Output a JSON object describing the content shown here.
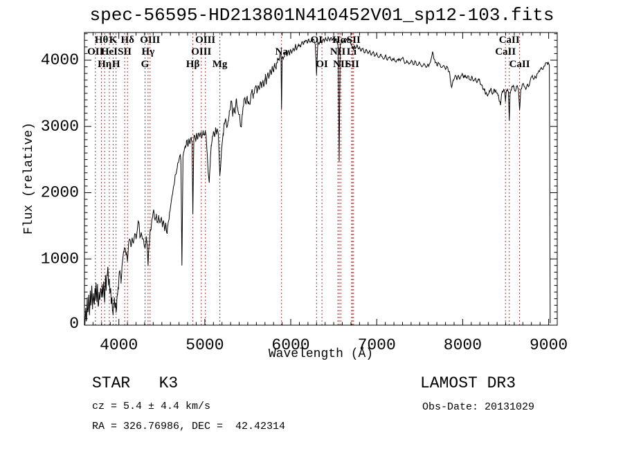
{
  "title": "spec-56595-HD213801N410452V01_sp12-103.fits",
  "annotations": {
    "class_line": "STAR   K3",
    "cz_line": "cz = 5.4 ± 4.4 km/s",
    "radec_line": "RA = 326.76986, DEC =  42.42314",
    "survey_line": "LAMOST DR3",
    "obsdate_line": "Obs-Date: 20131029"
  },
  "chart_data": {
    "type": "line",
    "title": "spec-56595-HD213801N410452V01_sp12-103.fits",
    "xlabel": "Wavelength (Å)",
    "ylabel": "Flux (relative)",
    "xlim": [
      3600,
      9100
    ],
    "ylim": [
      0,
      4420
    ],
    "x_ticks": [
      4000,
      5000,
      6000,
      7000,
      8000,
      9000
    ],
    "y_ticks": [
      0,
      1000,
      2000,
      3000,
      4000
    ],
    "grid": false,
    "legend": "none",
    "curve_color": "#000000",
    "line_marker_color": "#a83434",
    "spectral_lines": [
      {
        "label": "OII",
        "wavelength": 3727,
        "row": 2
      },
      {
        "label": "Hθ",
        "wavelength": 3798,
        "row": 1
      },
      {
        "label": "Hη",
        "wavelength": 3835,
        "row": 3
      },
      {
        "label": "HeI",
        "wavelength": 3889,
        "row": 2
      },
      {
        "label": "K",
        "wavelength": 3933,
        "row": 1
      },
      {
        "label": "H",
        "wavelength": 3968,
        "row": 3
      },
      {
        "label": "SII",
        "wavelength": 4068,
        "row": 2
      },
      {
        "label": "Hδ",
        "wavelength": 4101,
        "row": 1
      },
      {
        "label": "G",
        "wavelength": 4305,
        "row": 3
      },
      {
        "label": "Hγ",
        "wavelength": 4340,
        "row": 2
      },
      {
        "label": "OIII",
        "wavelength": 4363,
        "row": 1
      },
      {
        "label": "Hβ",
        "wavelength": 4861,
        "row": 3
      },
      {
        "label": "OIII",
        "wavelength": 4959,
        "row": 2
      },
      {
        "label": "OIII",
        "wavelength": 5007,
        "row": 1
      },
      {
        "label": "Mg",
        "wavelength": 5175,
        "row": 3
      },
      {
        "label": "Na",
        "wavelength": 5893,
        "row": 2
      },
      {
        "label": "OI",
        "wavelength": 6300,
        "row": 1
      },
      {
        "label": "OI",
        "wavelength": 6363,
        "row": 3
      },
      {
        "label": "NII",
        "wavelength": 6548,
        "row": 2
      },
      {
        "label": "Hα",
        "wavelength": 6563,
        "row": 1
      },
      {
        "label": "NII",
        "wavelength": 6583,
        "row": 3
      },
      {
        "label": "Li",
        "wavelength": 6708,
        "row": 2
      },
      {
        "label": "SII",
        "wavelength": 6716,
        "row": 3
      },
      {
        "label": "SII",
        "wavelength": 6731,
        "row": 1
      },
      {
        "label": "CaII",
        "wavelength": 8498,
        "row": 2
      },
      {
        "label": "CaII",
        "wavelength": 8542,
        "row": 1
      },
      {
        "label": "CaII",
        "wavelength": 8662,
        "row": 3
      }
    ],
    "noise_bands": [
      [
        3600,
        4050,
        90
      ],
      [
        4050,
        4560,
        60
      ],
      [
        4560,
        5300,
        55
      ],
      [
        5300,
        5900,
        65
      ],
      [
        5900,
        6800,
        30
      ],
      [
        6800,
        7600,
        25
      ],
      [
        7600,
        8420,
        35
      ],
      [
        8420,
        9008,
        25
      ]
    ],
    "points": [
      [
        3605,
        0
      ],
      [
        3615,
        260
      ],
      [
        3622,
        60
      ],
      [
        3632,
        420
      ],
      [
        3640,
        200
      ],
      [
        3650,
        460
      ],
      [
        3658,
        150
      ],
      [
        3668,
        520
      ],
      [
        3676,
        300
      ],
      [
        3686,
        560
      ],
      [
        3694,
        240
      ],
      [
        3704,
        480
      ],
      [
        3712,
        330
      ],
      [
        3722,
        560
      ],
      [
        3727,
        380
      ],
      [
        3736,
        600
      ],
      [
        3744,
        350
      ],
      [
        3752,
        620
      ],
      [
        3760,
        280
      ],
      [
        3770,
        500
      ],
      [
        3778,
        380
      ],
      [
        3788,
        560
      ],
      [
        3798,
        420
      ],
      [
        3806,
        620
      ],
      [
        3814,
        420
      ],
      [
        3824,
        660
      ],
      [
        3835,
        340
      ],
      [
        3844,
        700
      ],
      [
        3852,
        520
      ],
      [
        3862,
        760
      ],
      [
        3872,
        880
      ],
      [
        3880,
        600
      ],
      [
        3889,
        700
      ],
      [
        3896,
        480
      ],
      [
        3905,
        560
      ],
      [
        3912,
        320
      ],
      [
        3920,
        420
      ],
      [
        3928,
        220
      ],
      [
        3933,
        150
      ],
      [
        3940,
        320
      ],
      [
        3948,
        420
      ],
      [
        3955,
        260
      ],
      [
        3962,
        340
      ],
      [
        3968,
        190
      ],
      [
        3976,
        380
      ],
      [
        3984,
        480
      ],
      [
        3992,
        580
      ],
      [
        4000,
        700
      ],
      [
        4012,
        820
      ],
      [
        4024,
        700
      ],
      [
        4036,
        880
      ],
      [
        4048,
        1020
      ],
      [
        4060,
        1100
      ],
      [
        4075,
        1160
      ],
      [
        4088,
        1100
      ],
      [
        4101,
        960
      ],
      [
        4112,
        1200
      ],
      [
        4126,
        1300
      ],
      [
        4140,
        1180
      ],
      [
        4155,
        1320
      ],
      [
        4170,
        1240
      ],
      [
        4185,
        1380
      ],
      [
        4200,
        1300
      ],
      [
        4215,
        1440
      ],
      [
        4230,
        1560
      ],
      [
        4245,
        1320
      ],
      [
        4260,
        1400
      ],
      [
        4275,
        1300
      ],
      [
        4290,
        1260
      ],
      [
        4305,
        1160
      ],
      [
        4318,
        1340
      ],
      [
        4330,
        1200
      ],
      [
        4340,
        900
      ],
      [
        4352,
        1220
      ],
      [
        4366,
        1420
      ],
      [
        4380,
        1540
      ],
      [
        4394,
        1640
      ],
      [
        4408,
        1720
      ],
      [
        4422,
        1580
      ],
      [
        4436,
        1680
      ],
      [
        4450,
        1560
      ],
      [
        4464,
        1660
      ],
      [
        4478,
        1540
      ],
      [
        4492,
        1620
      ],
      [
        4506,
        1480
      ],
      [
        4520,
        1580
      ],
      [
        4534,
        1420
      ],
      [
        4548,
        1520
      ],
      [
        4562,
        1380
      ],
      [
        4576,
        1560
      ],
      [
        4590,
        1700
      ],
      [
        4605,
        1820
      ],
      [
        4620,
        1960
      ],
      [
        4635,
        2080
      ],
      [
        4650,
        2180
      ],
      [
        4665,
        2280
      ],
      [
        4680,
        2380
      ],
      [
        4695,
        2460
      ],
      [
        4710,
        2560
      ],
      [
        4722,
        2480
      ],
      [
        4734,
        900
      ],
      [
        4746,
        2540
      ],
      [
        4758,
        2620
      ],
      [
        4772,
        2700
      ],
      [
        4786,
        2780
      ],
      [
        4800,
        2720
      ],
      [
        4814,
        2800
      ],
      [
        4828,
        2740
      ],
      [
        4842,
        2840
      ],
      [
        4852,
        2760
      ],
      [
        4861,
        1680
      ],
      [
        4872,
        2800
      ],
      [
        4884,
        2860
      ],
      [
        4896,
        2780
      ],
      [
        4908,
        2880
      ],
      [
        4920,
        2820
      ],
      [
        4932,
        2900
      ],
      [
        4944,
        2840
      ],
      [
        4956,
        2920
      ],
      [
        4968,
        2860
      ],
      [
        4980,
        2940
      ],
      [
        4992,
        2880
      ],
      [
        5004,
        2920
      ],
      [
        5016,
        2840
      ],
      [
        5028,
        2600
      ],
      [
        5040,
        2300
      ],
      [
        5052,
        2150
      ],
      [
        5064,
        2450
      ],
      [
        5076,
        2700
      ],
      [
        5088,
        2850
      ],
      [
        5100,
        2920
      ],
      [
        5112,
        2860
      ],
      [
        5124,
        2940
      ],
      [
        5136,
        2880
      ],
      [
        5148,
        2940
      ],
      [
        5160,
        2820
      ],
      [
        5175,
        2260
      ],
      [
        5188,
        2480
      ],
      [
        5200,
        2720
      ],
      [
        5214,
        2900
      ],
      [
        5228,
        3040
      ],
      [
        5242,
        3120
      ],
      [
        5256,
        2980
      ],
      [
        5270,
        3080
      ],
      [
        5284,
        3180
      ],
      [
        5298,
        3280
      ],
      [
        5312,
        3380
      ],
      [
        5326,
        3180
      ],
      [
        5340,
        3280
      ],
      [
        5354,
        3200
      ],
      [
        5368,
        3420
      ],
      [
        5382,
        3280
      ],
      [
        5396,
        3180
      ],
      [
        5410,
        3080
      ],
      [
        5424,
        3000
      ],
      [
        5438,
        3180
      ],
      [
        5452,
        3320
      ],
      [
        5466,
        3440
      ],
      [
        5480,
        3340
      ],
      [
        5494,
        3460
      ],
      [
        5508,
        3380
      ],
      [
        5522,
        3340
      ],
      [
        5536,
        3480
      ],
      [
        5550,
        3560
      ],
      [
        5564,
        3420
      ],
      [
        5578,
        3540
      ],
      [
        5592,
        3600
      ],
      [
        5606,
        3500
      ],
      [
        5620,
        3620
      ],
      [
        5634,
        3560
      ],
      [
        5648,
        3680
      ],
      [
        5662,
        3580
      ],
      [
        5676,
        3700
      ],
      [
        5690,
        3620
      ],
      [
        5704,
        3740
      ],
      [
        5718,
        3680
      ],
      [
        5732,
        3800
      ],
      [
        5746,
        3740
      ],
      [
        5760,
        3860
      ],
      [
        5774,
        3780
      ],
      [
        5788,
        3880
      ],
      [
        5802,
        3820
      ],
      [
        5816,
        3900
      ],
      [
        5830,
        3860
      ],
      [
        5844,
        3960
      ],
      [
        5858,
        4020
      ],
      [
        5872,
        4060
      ],
      [
        5886,
        4100
      ],
      [
        5893,
        3260
      ],
      [
        5900,
        4060
      ],
      [
        5914,
        4020
      ],
      [
        5928,
        4080
      ],
      [
        5942,
        4120
      ],
      [
        5956,
        4060
      ],
      [
        5970,
        4140
      ],
      [
        5984,
        4080
      ],
      [
        5998,
        4160
      ],
      [
        6012,
        4100
      ],
      [
        6026,
        4180
      ],
      [
        6040,
        4140
      ],
      [
        6054,
        4220
      ],
      [
        6070,
        4160
      ],
      [
        6090,
        4240
      ],
      [
        6110,
        4200
      ],
      [
        6130,
        4280
      ],
      [
        6150,
        4240
      ],
      [
        6170,
        4300
      ],
      [
        6190,
        4260
      ],
      [
        6210,
        4320
      ],
      [
        6230,
        4280
      ],
      [
        6250,
        4330
      ],
      [
        6270,
        4300
      ],
      [
        6285,
        4240
      ],
      [
        6300,
        3780
      ],
      [
        6315,
        4280
      ],
      [
        6330,
        4240
      ],
      [
        6345,
        4300
      ],
      [
        6360,
        4260
      ],
      [
        6375,
        4320
      ],
      [
        6390,
        4280
      ],
      [
        6405,
        4340
      ],
      [
        6420,
        4300
      ],
      [
        6435,
        4350
      ],
      [
        6450,
        4310
      ],
      [
        6465,
        4340
      ],
      [
        6480,
        4300
      ],
      [
        6495,
        4330
      ],
      [
        6510,
        4300
      ],
      [
        6525,
        4330
      ],
      [
        6540,
        4280
      ],
      [
        6550,
        4220
      ],
      [
        6563,
        2470
      ],
      [
        6576,
        4240
      ],
      [
        6590,
        4300
      ],
      [
        6605,
        4260
      ],
      [
        6620,
        4310
      ],
      [
        6635,
        4270
      ],
      [
        6650,
        4320
      ],
      [
        6665,
        4280
      ],
      [
        6680,
        4310
      ],
      [
        6695,
        4260
      ],
      [
        6708,
        4220
      ],
      [
        6716,
        4170
      ],
      [
        6724,
        4210
      ],
      [
        6731,
        4150
      ],
      [
        6740,
        4220
      ],
      [
        6755,
        4180
      ],
      [
        6770,
        4230
      ],
      [
        6785,
        4170
      ],
      [
        6800,
        4200
      ],
      [
        6820,
        4140
      ],
      [
        6840,
        4180
      ],
      [
        6860,
        4110
      ],
      [
        6880,
        4160
      ],
      [
        6900,
        4100
      ],
      [
        6920,
        4150
      ],
      [
        6940,
        4080
      ],
      [
        6960,
        4130
      ],
      [
        6980,
        4060
      ],
      [
        7000,
        4110
      ],
      [
        7025,
        4040
      ],
      [
        7050,
        4090
      ],
      [
        7075,
        4020
      ],
      [
        7100,
        4070
      ],
      [
        7125,
        4000
      ],
      [
        7150,
        4050
      ],
      [
        7175,
        3990
      ],
      [
        7200,
        4030
      ],
      [
        7225,
        3970
      ],
      [
        7250,
        4020
      ],
      [
        7275,
        3990
      ],
      [
        7300,
        4040
      ],
      [
        7325,
        3950
      ],
      [
        7350,
        4000
      ],
      [
        7375,
        3940
      ],
      [
        7400,
        3990
      ],
      [
        7425,
        3930
      ],
      [
        7450,
        3980
      ],
      [
        7475,
        3920
      ],
      [
        7500,
        3960
      ],
      [
        7525,
        3900
      ],
      [
        7550,
        3950
      ],
      [
        7575,
        3890
      ],
      [
        7600,
        3930
      ],
      [
        7625,
        3970
      ],
      [
        7650,
        4130
      ],
      [
        7665,
        4020
      ],
      [
        7680,
        3960
      ],
      [
        7700,
        3920
      ],
      [
        7725,
        3950
      ],
      [
        7750,
        3890
      ],
      [
        7775,
        3920
      ],
      [
        7800,
        3860
      ],
      [
        7825,
        3890
      ],
      [
        7850,
        3790
      ],
      [
        7871,
        3590
      ],
      [
        7890,
        3700
      ],
      [
        7910,
        3760
      ],
      [
        7930,
        3710
      ],
      [
        7950,
        3770
      ],
      [
        7970,
        3720
      ],
      [
        7990,
        3780
      ],
      [
        8010,
        3730
      ],
      [
        8030,
        3780
      ],
      [
        8050,
        3720
      ],
      [
        8070,
        3760
      ],
      [
        8090,
        3700
      ],
      [
        8110,
        3750
      ],
      [
        8130,
        3690
      ],
      [
        8150,
        3730
      ],
      [
        8170,
        3670
      ],
      [
        8190,
        3700
      ],
      [
        8210,
        3640
      ],
      [
        8230,
        3600
      ],
      [
        8250,
        3550
      ],
      [
        8270,
        3500
      ],
      [
        8290,
        3460
      ],
      [
        8310,
        3540
      ],
      [
        8330,
        3580
      ],
      [
        8350,
        3500
      ],
      [
        8370,
        3560
      ],
      [
        8390,
        3520
      ],
      [
        8410,
        3470
      ],
      [
        8430,
        3380
      ],
      [
        8440,
        3320
      ],
      [
        8452,
        3480
      ],
      [
        8464,
        3540
      ],
      [
        8476,
        3560
      ],
      [
        8488,
        3520
      ],
      [
        8498,
        3370
      ],
      [
        8508,
        3540
      ],
      [
        8520,
        3570
      ],
      [
        8532,
        3520
      ],
      [
        8542,
        3090
      ],
      [
        8552,
        3520
      ],
      [
        8564,
        3560
      ],
      [
        8576,
        3600
      ],
      [
        8588,
        3620
      ],
      [
        8600,
        3560
      ],
      [
        8612,
        3530
      ],
      [
        8624,
        3580
      ],
      [
        8636,
        3610
      ],
      [
        8648,
        3560
      ],
      [
        8662,
        3250
      ],
      [
        8676,
        3560
      ],
      [
        8690,
        3610
      ],
      [
        8705,
        3650
      ],
      [
        8720,
        3600
      ],
      [
        8735,
        3560
      ],
      [
        8750,
        3630
      ],
      [
        8765,
        3600
      ],
      [
        8780,
        3660
      ],
      [
        8795,
        3740
      ],
      [
        8810,
        3770
      ],
      [
        8825,
        3710
      ],
      [
        8840,
        3760
      ],
      [
        8855,
        3730
      ],
      [
        8870,
        3800
      ],
      [
        8885,
        3840
      ],
      [
        8900,
        3860
      ],
      [
        8915,
        3890
      ],
      [
        8930,
        3860
      ],
      [
        8945,
        3910
      ],
      [
        8960,
        3940
      ],
      [
        8975,
        3960
      ],
      [
        8988,
        3930
      ],
      [
        9000,
        3950
      ],
      [
        9008,
        3930
      ],
      [
        9013,
        2600
      ],
      [
        9016,
        800
      ],
      [
        9018,
        30
      ]
    ]
  }
}
